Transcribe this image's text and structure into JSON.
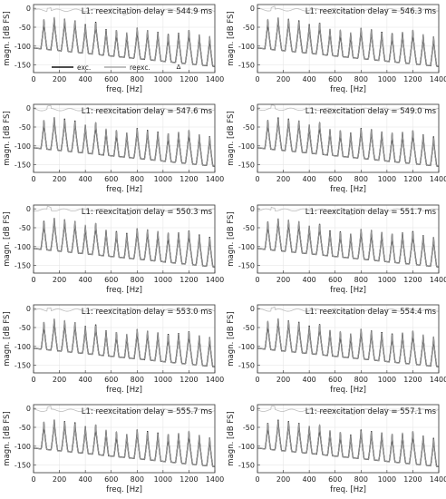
{
  "chart_data": {
    "type": "line",
    "xlabel": "freq. [Hz]",
    "ylabel": "magn. [dB FS]",
    "xlim": [
      0,
      1400
    ],
    "ylim": [
      -170,
      10
    ],
    "xticks": [
      "0",
      "200",
      "400",
      "600",
      "800",
      "1000",
      "1200",
      "1400"
    ],
    "yticks": [
      "0",
      "-50",
      "-100",
      "-150"
    ],
    "grid": true,
    "harmonic_frequencies_hz": [
      80,
      160,
      240,
      320,
      400,
      480,
      560,
      640,
      720,
      800,
      880,
      960,
      1040,
      1120,
      1200,
      1280,
      1360
    ],
    "legend": {
      "location": "lower-left",
      "shown_in_panel": 0,
      "entries": [
        {
          "label": "exc.",
          "color": "#111111"
        },
        {
          "label": "reexc.",
          "color": "#999999"
        }
      ]
    },
    "marker_symbol": "Δ",
    "colors": {
      "exc": "#111111",
      "reexc": "#999999",
      "diff": "#bdbdbd"
    },
    "panels": [
      {
        "title": "L1: reexcitation delay = 544.9 ms",
        "peaks": [
          -30,
          -25,
          -28,
          -32,
          -42,
          -36,
          -55,
          -58,
          -65,
          -52,
          -58,
          -62,
          -68,
          -65,
          -58,
          -70,
          -75
        ],
        "diff_base": -5
      },
      {
        "title": "L1: reexcitation delay = 546.3 ms",
        "peaks": [
          -30,
          -25,
          -28,
          -32,
          -42,
          -38,
          -55,
          -58,
          -65,
          -52,
          -56,
          -62,
          -66,
          -63,
          -58,
          -70,
          -75
        ],
        "diff_base": -4
      },
      {
        "title": "L1: reexcitation delay = 547.6 ms",
        "peaks": [
          -32,
          -25,
          -28,
          -33,
          -44,
          -38,
          -56,
          -59,
          -65,
          -53,
          -58,
          -62,
          -67,
          -64,
          -59,
          -70,
          -74
        ],
        "diff_base": -4
      },
      {
        "title": "L1: reexcitation delay = 549.0 ms",
        "peaks": [
          -32,
          -25,
          -28,
          -33,
          -44,
          -38,
          -56,
          -59,
          -65,
          -53,
          -56,
          -62,
          -66,
          -64,
          -59,
          -70,
          -75
        ],
        "diff_base": -3
      },
      {
        "title": "L1: reexcitation delay = 550.3 ms",
        "peaks": [
          -32,
          -25,
          -28,
          -33,
          -44,
          -38,
          -56,
          -59,
          -64,
          -52,
          -55,
          -60,
          -64,
          -62,
          -58,
          -68,
          -74
        ],
        "diff_base": -3
      },
      {
        "title": "L1: reexcitation delay = 551.7 ms",
        "peaks": [
          -34,
          -26,
          -30,
          -34,
          -45,
          -40,
          -57,
          -60,
          -66,
          -54,
          -57,
          -62,
          -66,
          -63,
          -59,
          -70,
          -75
        ],
        "diff_base": -3
      },
      {
        "title": "L1: reexcitation delay = 553.0 ms",
        "peaks": [
          -36,
          -28,
          -32,
          -36,
          -46,
          -42,
          -58,
          -62,
          -68,
          -55,
          -59,
          -63,
          -67,
          -65,
          -60,
          -71,
          -76
        ],
        "diff_base": -4
      },
      {
        "title": "L1: reexcitation delay = 554.4 ms",
        "peaks": [
          -34,
          -27,
          -31,
          -35,
          -45,
          -41,
          -57,
          -61,
          -67,
          -54,
          -58,
          -62,
          -66,
          -64,
          -59,
          -70,
          -75
        ],
        "diff_base": -4
      },
      {
        "title": "L1: reexcitation delay = 555.7 ms",
        "peaks": [
          -36,
          -30,
          -34,
          -37,
          -47,
          -43,
          -58,
          -62,
          -68,
          -56,
          -60,
          -64,
          -68,
          -66,
          -61,
          -71,
          -77
        ],
        "diff_base": -5
      },
      {
        "title": "L1: reexcitation delay = 557.1 ms",
        "peaks": [
          -38,
          -30,
          -34,
          -38,
          -47,
          -44,
          -59,
          -63,
          -69,
          -56,
          -60,
          -64,
          -68,
          -66,
          -61,
          -72,
          -78
        ],
        "diff_base": -5
      }
    ]
  }
}
